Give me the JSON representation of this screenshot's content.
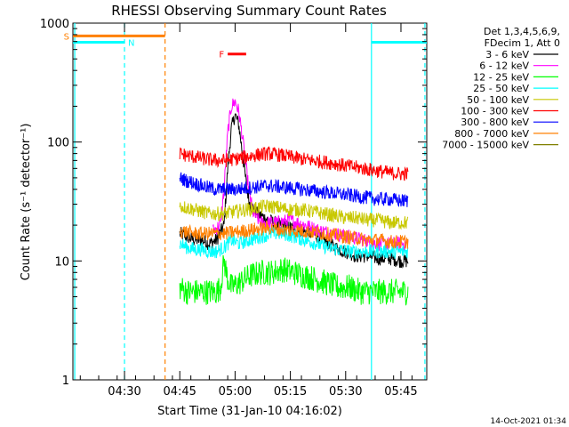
{
  "chart_data": {
    "type": "line",
    "title": "RHESSI Observing Summary Count Rates",
    "xlabel": "Start Time (31-Jan-10 04:16:02)",
    "ylabel": "Count Rate (s⁻¹ detector⁻¹)",
    "yscale": "log",
    "ylim": [
      1,
      1000
    ],
    "y_ticks": [
      {
        "value": 1,
        "label": "1"
      },
      {
        "value": 10,
        "label": "10"
      },
      {
        "value": 100,
        "label": "100"
      },
      {
        "value": 1000,
        "label": "1000"
      }
    ],
    "xlim_minutes": [
      0,
      96
    ],
    "x_ticks": [
      {
        "minutes": 14,
        "label": "04:30"
      },
      {
        "minutes": 29,
        "label": "04:45"
      },
      {
        "minutes": 44,
        "label": "05:00"
      },
      {
        "minutes": 59,
        "label": "05:15"
      },
      {
        "minutes": 74,
        "label": "05:30"
      },
      {
        "minutes": 89,
        "label": "05:45"
      }
    ],
    "legend": {
      "header_lines": [
        "Det 1,3,4,5,6,9,",
        "FDecim 1, Att 0"
      ],
      "placement": "right"
    },
    "series": [
      {
        "name": "3 - 6 keV",
        "color": "#000000",
        "points": [
          [
            29,
            17
          ],
          [
            31,
            16
          ],
          [
            33,
            15
          ],
          [
            35,
            15
          ],
          [
            37,
            14
          ],
          [
            39,
            15
          ],
          [
            41,
            20
          ],
          [
            42,
            60
          ],
          [
            43,
            130
          ],
          [
            44,
            170
          ],
          [
            45,
            140
          ],
          [
            46,
            80
          ],
          [
            47,
            45
          ],
          [
            48,
            30
          ],
          [
            50,
            25
          ],
          [
            53,
            22
          ],
          [
            56,
            20
          ],
          [
            59,
            19
          ],
          [
            62,
            18
          ],
          [
            65,
            17
          ],
          [
            68,
            15
          ],
          [
            71,
            13
          ],
          [
            74,
            12
          ],
          [
            77,
            11
          ],
          [
            80,
            11
          ],
          [
            83,
            10.5
          ],
          [
            86,
            10.5
          ],
          [
            89,
            10
          ],
          [
            91,
            10
          ]
        ]
      },
      {
        "name": "6 - 12 keV",
        "color": "#ff00ff",
        "points": [
          [
            38,
            18
          ],
          [
            40,
            20
          ],
          [
            41,
            40
          ],
          [
            42,
            120
          ],
          [
            43,
            200
          ],
          [
            44,
            220
          ],
          [
            45,
            180
          ],
          [
            46,
            110
          ],
          [
            47,
            60
          ],
          [
            48,
            35
          ],
          [
            49,
            25
          ],
          [
            51,
            21
          ],
          [
            55,
            21
          ],
          [
            59,
            22
          ],
          [
            63,
            20
          ],
          [
            67,
            18
          ],
          [
            71,
            17
          ],
          [
            75,
            16
          ],
          [
            79,
            15
          ],
          [
            83,
            14
          ],
          [
            87,
            14
          ],
          [
            91,
            14
          ]
        ]
      },
      {
        "name": "12 - 25 keV",
        "color": "#00ff00",
        "points": [
          [
            29,
            6
          ],
          [
            31,
            5.5
          ],
          [
            33,
            5.5
          ],
          [
            35,
            5.5
          ],
          [
            37,
            5.5
          ],
          [
            39,
            5.5
          ],
          [
            40,
            6
          ],
          [
            41,
            10
          ],
          [
            42,
            7
          ],
          [
            43,
            6
          ],
          [
            45,
            6.5
          ],
          [
            48,
            7.5
          ],
          [
            51,
            8
          ],
          [
            54,
            8
          ],
          [
            57,
            8.5
          ],
          [
            60,
            8
          ],
          [
            63,
            7.5
          ],
          [
            66,
            7
          ],
          [
            69,
            6.5
          ],
          [
            72,
            6
          ],
          [
            75,
            6
          ],
          [
            78,
            5.5
          ],
          [
            81,
            5.5
          ],
          [
            84,
            5.5
          ],
          [
            87,
            5.5
          ],
          [
            89,
            5.5
          ],
          [
            91,
            5.5
          ]
        ]
      },
      {
        "name": "25 - 50 keV",
        "color": "#00ffff",
        "points": [
          [
            29,
            14
          ],
          [
            31,
            13
          ],
          [
            33,
            12.5
          ],
          [
            35,
            12.5
          ],
          [
            37,
            12
          ],
          [
            39,
            12
          ],
          [
            41,
            13
          ],
          [
            43,
            15
          ],
          [
            45,
            14
          ],
          [
            48,
            15
          ],
          [
            51,
            16
          ],
          [
            54,
            17
          ],
          [
            57,
            17
          ],
          [
            60,
            16
          ],
          [
            63,
            15
          ],
          [
            66,
            14
          ],
          [
            69,
            13
          ],
          [
            72,
            12.5
          ],
          [
            75,
            12
          ],
          [
            78,
            12
          ],
          [
            81,
            12
          ],
          [
            84,
            12
          ],
          [
            87,
            12
          ],
          [
            89,
            12
          ],
          [
            91,
            12
          ]
        ]
      },
      {
        "name": "50 - 100 keV",
        "color": "#c8c800",
        "points": [
          [
            29,
            29
          ],
          [
            31,
            28
          ],
          [
            33,
            27
          ],
          [
            35,
            26
          ],
          [
            37,
            25
          ],
          [
            39,
            25
          ],
          [
            41,
            25
          ],
          [
            44,
            26
          ],
          [
            47,
            27
          ],
          [
            50,
            28
          ],
          [
            53,
            29
          ],
          [
            56,
            28
          ],
          [
            59,
            27
          ],
          [
            62,
            27
          ],
          [
            65,
            26
          ],
          [
            68,
            25
          ],
          [
            71,
            24
          ],
          [
            74,
            23
          ],
          [
            77,
            23
          ],
          [
            80,
            22
          ],
          [
            83,
            22
          ],
          [
            86,
            21
          ],
          [
            89,
            21
          ],
          [
            91,
            21
          ]
        ]
      },
      {
        "name": "100 - 300 keV",
        "color": "#ff0000",
        "points": [
          [
            29,
            80
          ],
          [
            31,
            77
          ],
          [
            33,
            75
          ],
          [
            35,
            73
          ],
          [
            37,
            71
          ],
          [
            39,
            70
          ],
          [
            41,
            70
          ],
          [
            44,
            72
          ],
          [
            47,
            75
          ],
          [
            50,
            78
          ],
          [
            53,
            80
          ],
          [
            56,
            78
          ],
          [
            59,
            75
          ],
          [
            62,
            72
          ],
          [
            65,
            70
          ],
          [
            68,
            68
          ],
          [
            71,
            66
          ],
          [
            74,
            63
          ],
          [
            77,
            61
          ],
          [
            80,
            59
          ],
          [
            83,
            57
          ],
          [
            86,
            55
          ],
          [
            89,
            54
          ],
          [
            91,
            54
          ]
        ]
      },
      {
        "name": "300 - 800 keV",
        "color": "#0000ff",
        "points": [
          [
            29,
            50
          ],
          [
            31,
            47
          ],
          [
            33,
            45
          ],
          [
            35,
            43
          ],
          [
            37,
            41
          ],
          [
            39,
            40
          ],
          [
            41,
            40
          ],
          [
            44,
            40
          ],
          [
            47,
            41
          ],
          [
            50,
            42
          ],
          [
            53,
            43
          ],
          [
            56,
            42
          ],
          [
            59,
            41
          ],
          [
            62,
            40
          ],
          [
            65,
            39
          ],
          [
            68,
            38
          ],
          [
            71,
            37
          ],
          [
            74,
            36
          ],
          [
            77,
            35
          ],
          [
            80,
            34
          ],
          [
            83,
            33
          ],
          [
            86,
            33
          ],
          [
            89,
            32
          ],
          [
            91,
            32
          ]
        ]
      },
      {
        "name": "800 - 7000 keV",
        "color": "#ff8000",
        "points": [
          [
            29,
            18
          ],
          [
            31,
            17.5
          ],
          [
            33,
            17
          ],
          [
            35,
            17
          ],
          [
            37,
            17
          ],
          [
            39,
            17
          ],
          [
            41,
            17
          ],
          [
            44,
            17.5
          ],
          [
            47,
            18
          ],
          [
            50,
            18.5
          ],
          [
            53,
            19
          ],
          [
            56,
            18.5
          ],
          [
            59,
            18
          ],
          [
            62,
            18
          ],
          [
            65,
            17.5
          ],
          [
            68,
            17
          ],
          [
            71,
            16.5
          ],
          [
            74,
            16
          ],
          [
            77,
            15.5
          ],
          [
            80,
            15
          ],
          [
            83,
            15
          ],
          [
            86,
            14.5
          ],
          [
            89,
            14.5
          ],
          [
            91,
            14.5
          ]
        ]
      },
      {
        "name": "7000 - 15000 keV",
        "color": "#808000",
        "points": []
      }
    ],
    "attenuator_bars": [
      {
        "label": "S",
        "color": "#ff8000",
        "x_start": 0,
        "x_end": 25,
        "y": 780,
        "label_side": "left"
      },
      {
        "label": "N",
        "color": "#00ffff",
        "x_start": 0,
        "x_end": 14,
        "y": 690,
        "label_side": "right"
      },
      {
        "label": "N",
        "color": "#00ffff",
        "x_start": 81,
        "x_end": 96,
        "y": 690,
        "label_side": "none"
      },
      {
        "label": "F",
        "color": "#ff0000",
        "x_start": 42,
        "x_end": 47,
        "y": 550,
        "label_side": "left"
      }
    ],
    "vertical_markers": [
      {
        "x": 0.5,
        "color": "#00ffff",
        "style": "solid"
      },
      {
        "x": 14,
        "color": "#00ffff",
        "style": "dashed"
      },
      {
        "x": 25,
        "color": "#ff8000",
        "style": "dashed"
      },
      {
        "x": 81,
        "color": "#00ffff",
        "style": "solid"
      },
      {
        "x": 95.5,
        "color": "#00ffff",
        "style": "dashed"
      }
    ]
  },
  "footer": {
    "timestamp": "14-Oct-2021 01:34"
  }
}
